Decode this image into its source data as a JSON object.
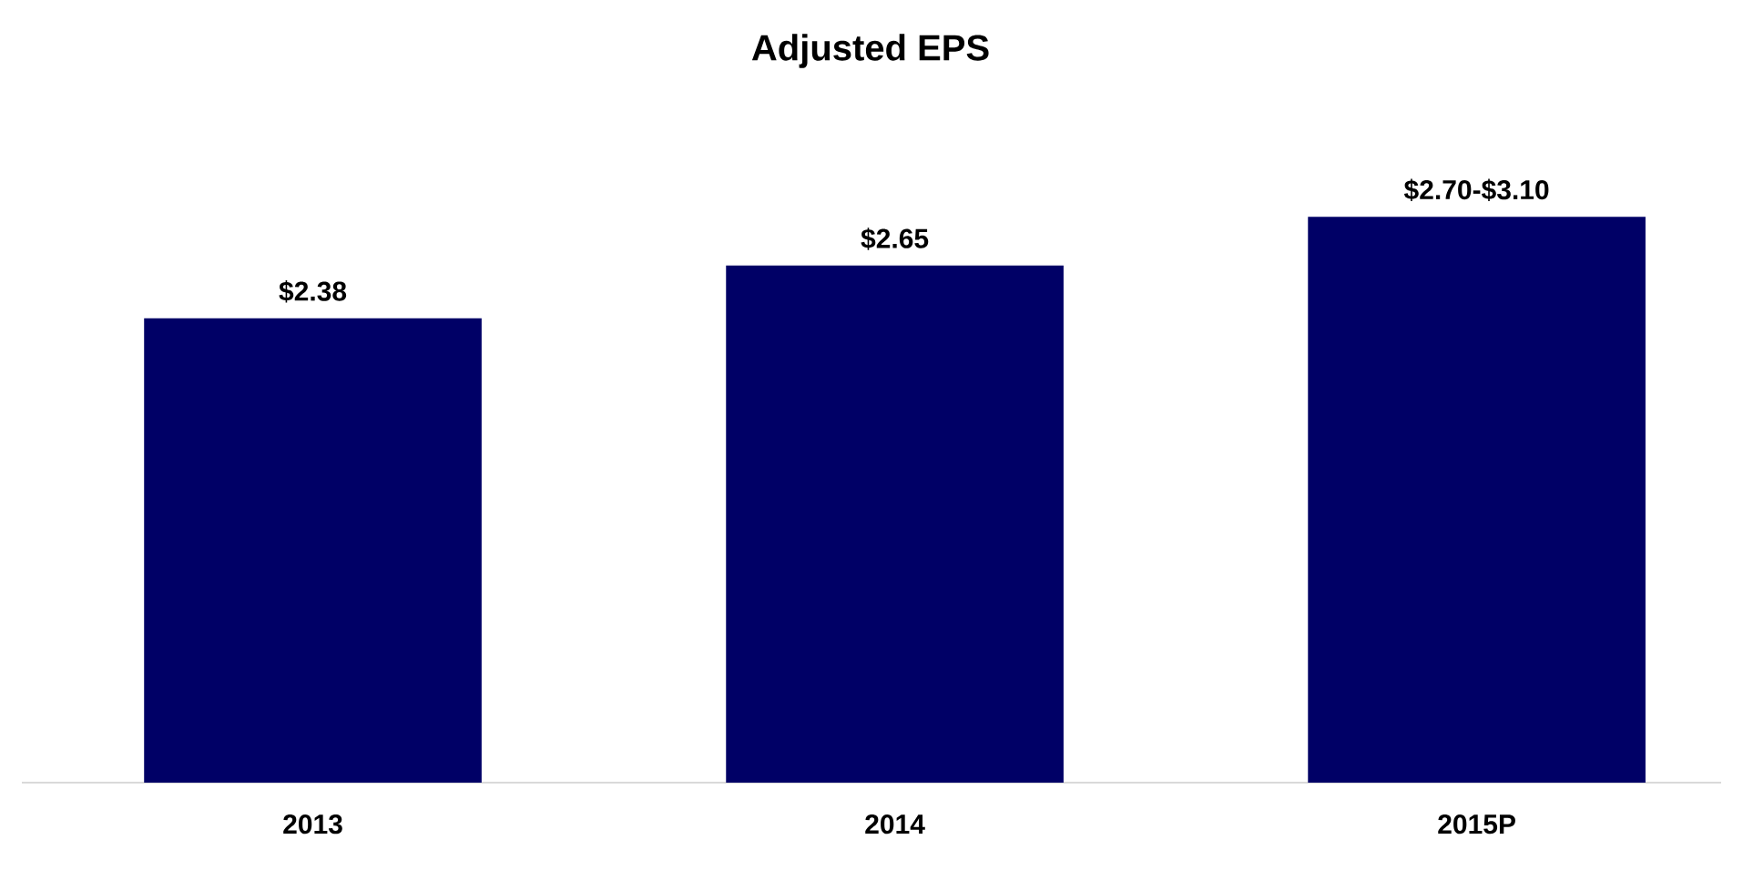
{
  "chart_data": {
    "type": "bar",
    "title": "Adjusted EPS",
    "categories": [
      "2013",
      "2014",
      "2015P"
    ],
    "values": [
      2.38,
      2.65,
      2.9
    ],
    "value_labels": [
      "$2.38",
      "$2.65",
      "$2.70-$3.10"
    ],
    "color": "#000066"
  }
}
